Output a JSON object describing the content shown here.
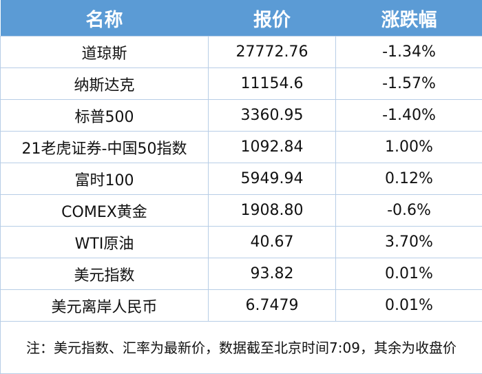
{
  "header": {
    "name": "名称",
    "price": "报价",
    "change": "涨跌幅"
  },
  "rows": [
    {
      "name": "道琼斯",
      "price": "27772.76",
      "change": "-1.34%"
    },
    {
      "name": "纳斯达克",
      "price": "11154.6",
      "change": "-1.57%"
    },
    {
      "name": "标普500",
      "price": "3360.95",
      "change": "-1.40%"
    },
    {
      "name": "21老虎证券-中国50指数",
      "price": "1092.84",
      "change": "1.00%"
    },
    {
      "name": "富时100",
      "price": "5949.94",
      "change": "0.12%"
    },
    {
      "name": "COMEX黄金",
      "price": "1908.80",
      "change": "-0.6%"
    },
    {
      "name": "WTI原油",
      "price": "40.67",
      "change": "3.70%"
    },
    {
      "name": "美元指数",
      "price": "93.82",
      "change": "0.01%"
    },
    {
      "name": "美元离岸人民币",
      "price": "6.7479",
      "change": "0.01%"
    }
  ],
  "note": "注：美元指数、汇率为最新价，数据截至北京时间7:09，其余为收盘价",
  "colors": {
    "header_bg": "#5b9bd5",
    "border": "#b7cde6"
  }
}
